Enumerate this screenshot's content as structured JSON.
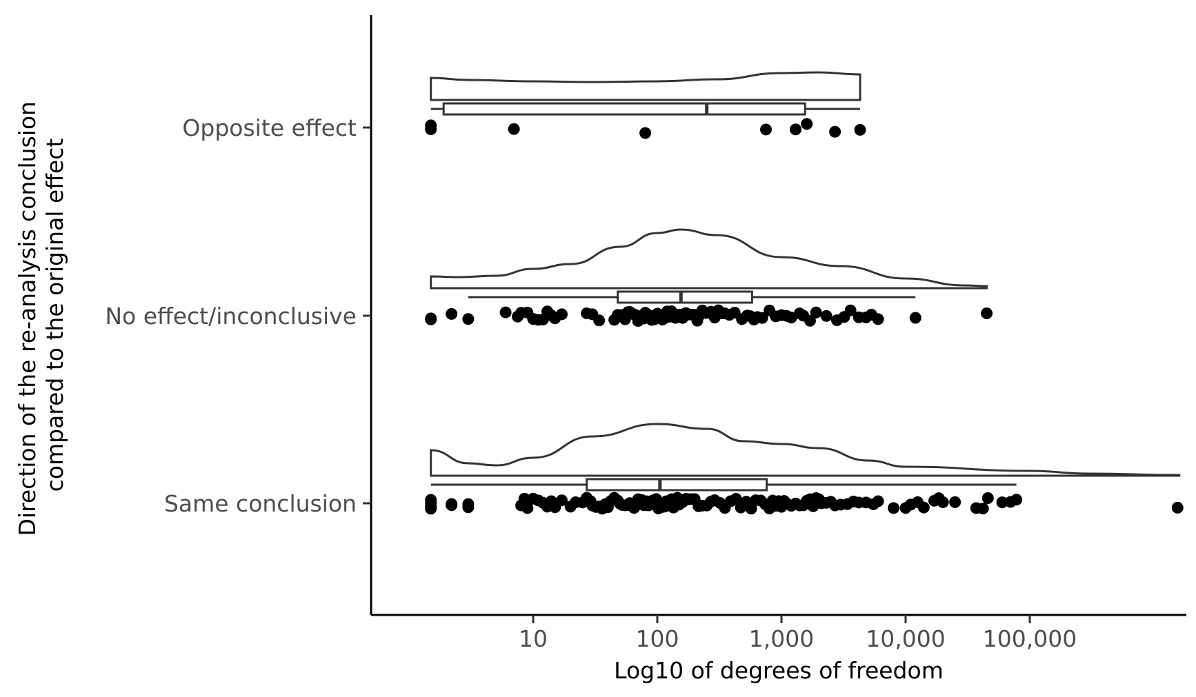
{
  "chart_data": {
    "type": "raincloud",
    "xlabel": "Log10 of degrees of freedom",
    "ylabel_lines": [
      "Direction of the re-analysis conclusion",
      "compared to the original effect"
    ],
    "x_scale": "log10",
    "xlim": [
      0.7,
      1800000
    ],
    "x_ticks": [
      {
        "value": 10,
        "label": "10"
      },
      {
        "value": 100,
        "label": "100"
      },
      {
        "value": 1000,
        "label": "1,000"
      },
      {
        "value": 10000,
        "label": "10,000"
      },
      {
        "value": 100000,
        "label": "100,000"
      }
    ],
    "categories": [
      "Opposite effect",
      "No effect/inconclusive",
      "Same conclusion"
    ],
    "groups": [
      {
        "label": "Opposite effect",
        "box": {
          "min": 1.5,
          "q1": 1.9,
          "median": 250,
          "q3": 1550,
          "max": 4300
        },
        "density_range": [
          1.5,
          4300
        ],
        "density_peak": 0.04,
        "density": [
          [
            1.5,
            0.032
          ],
          [
            3,
            0.029
          ],
          [
            10,
            0.027
          ],
          [
            30,
            0.026
          ],
          [
            100,
            0.027
          ],
          [
            300,
            0.03
          ],
          [
            1000,
            0.039
          ],
          [
            2000,
            0.04
          ],
          [
            4300,
            0.037
          ]
        ],
        "points": [
          1.5,
          1.5,
          7,
          80,
          750,
          1300,
          1600,
          2700,
          4300
        ]
      },
      {
        "label": "No effect/inconclusive",
        "box": {
          "min": 3,
          "q1": 48,
          "median": 155,
          "q3": 580,
          "max": 12000
        },
        "density_range": [
          1.5,
          45000
        ],
        "density_peak": 0.085,
        "density": [
          [
            1.5,
            0.017
          ],
          [
            2.5,
            0.016
          ],
          [
            5,
            0.018
          ],
          [
            10,
            0.028
          ],
          [
            20,
            0.035
          ],
          [
            50,
            0.06
          ],
          [
            100,
            0.08
          ],
          [
            155,
            0.085
          ],
          [
            300,
            0.077
          ],
          [
            1000,
            0.045
          ],
          [
            3000,
            0.032
          ],
          [
            10000,
            0.014
          ],
          [
            30000,
            0.004
          ],
          [
            45000,
            0.003
          ]
        ],
        "points": [
          1.5,
          1.5,
          2.2,
          3,
          6,
          7.5,
          8,
          9,
          10,
          11,
          12,
          13,
          14,
          15,
          17,
          27,
          30,
          34,
          45,
          48,
          52,
          55,
          58,
          60,
          62,
          65,
          68,
          70,
          75,
          78,
          80,
          85,
          90,
          95,
          100,
          105,
          110,
          115,
          120,
          125,
          130,
          140,
          150,
          160,
          170,
          180,
          190,
          200,
          210,
          220,
          230,
          250,
          270,
          290,
          310,
          330,
          350,
          380,
          420,
          480,
          530,
          560,
          600,
          640,
          700,
          800,
          900,
          1000,
          1100,
          1200,
          1400,
          1500,
          1700,
          1900,
          2300,
          2800,
          3200,
          3600,
          4200,
          4800,
          5300,
          6000,
          12000,
          45000
        ]
      },
      {
        "label": "Same conclusion",
        "box": {
          "min": 1.5,
          "q1": 27,
          "median": 105,
          "q3": 760,
          "max": 78000
        },
        "density_range": [
          1.5,
          1600000
        ],
        "density_peak": 0.075,
        "density": [
          [
            1.5,
            0.037
          ],
          [
            3,
            0.018
          ],
          [
            5,
            0.015
          ],
          [
            10,
            0.026
          ],
          [
            30,
            0.057
          ],
          [
            100,
            0.075
          ],
          [
            250,
            0.068
          ],
          [
            500,
            0.05
          ],
          [
            1000,
            0.046
          ],
          [
            2000,
            0.04
          ],
          [
            5000,
            0.022
          ],
          [
            10000,
            0.013
          ],
          [
            100000,
            0.007
          ],
          [
            300000,
            0.003
          ],
          [
            1600000,
            0.001
          ]
        ],
        "points": [
          1.5,
          1.5,
          1.5,
          1.5,
          2.2,
          2.2,
          3,
          3,
          8,
          8.5,
          9,
          10,
          11,
          12,
          13,
          14,
          15,
          17,
          20,
          22,
          25,
          27,
          29,
          30,
          32,
          34,
          36,
          38,
          40,
          42,
          45,
          48,
          50,
          52,
          55,
          58,
          60,
          62,
          65,
          68,
          70,
          72,
          75,
          78,
          80,
          82,
          85,
          88,
          90,
          92,
          95,
          98,
          100,
          102,
          105,
          108,
          110,
          115,
          118,
          120,
          125,
          130,
          135,
          140,
          145,
          150,
          160,
          170,
          180,
          190,
          200,
          215,
          230,
          250,
          270,
          290,
          320,
          350,
          390,
          430,
          470,
          520,
          570,
          620,
          680,
          740,
          800,
          850,
          900,
          950,
          1000,
          1050,
          1100,
          1200,
          1300,
          1400,
          1500,
          1600,
          1700,
          1800,
          1900,
          2000,
          2100,
          2300,
          2500,
          2700,
          3000,
          3400,
          3800,
          4200,
          4800,
          5500,
          6000,
          8000,
          10000,
          11000,
          12500,
          14000,
          17000,
          18500,
          20000,
          25000,
          37000,
          42000,
          46000,
          60000,
          70000,
          78000,
          1550000
        ]
      }
    ],
    "grid": false,
    "legend": "none",
    "colors": {
      "points": "#000000",
      "outline": "#333333",
      "fill": "#ffffff",
      "tick_text": "#4d4d4d"
    }
  }
}
